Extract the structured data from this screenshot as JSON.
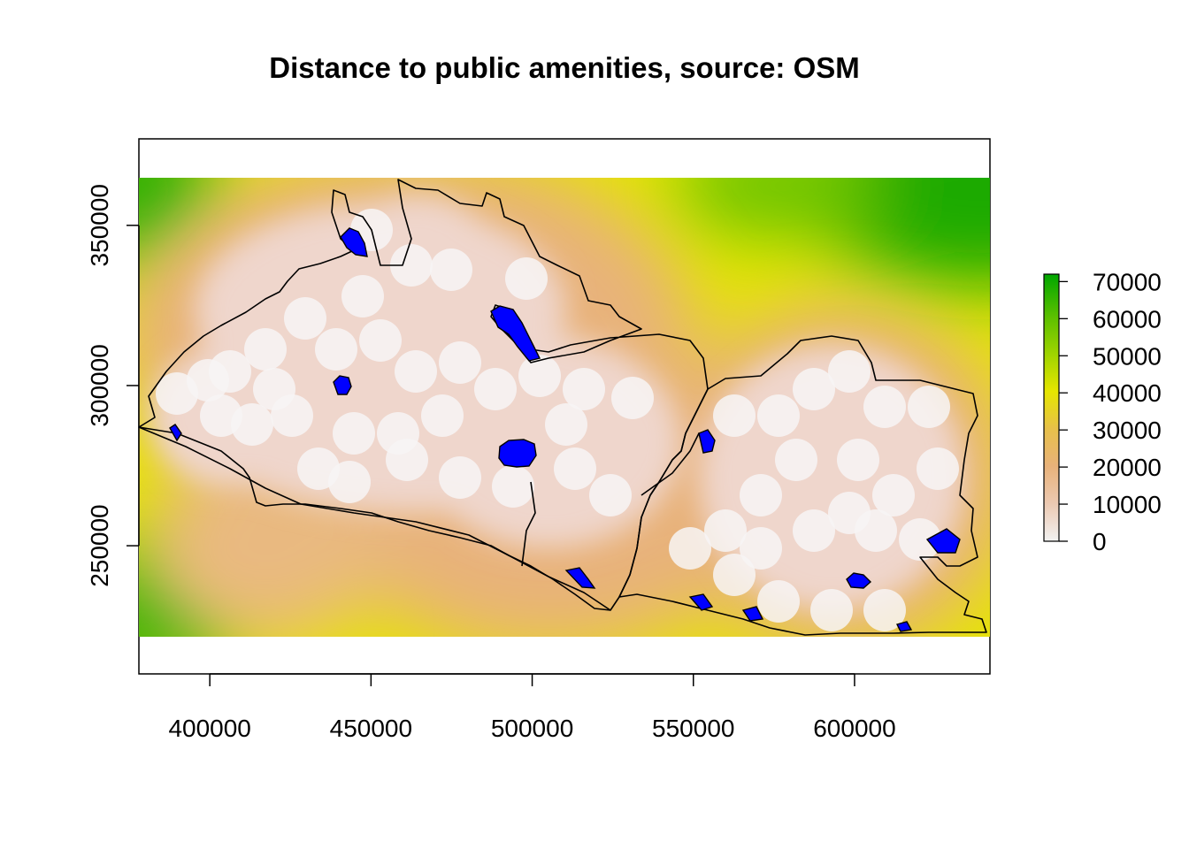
{
  "title": "Distance to public amenities, source: OSM",
  "chart_data": {
    "type": "heatmap",
    "map_kind": "raster distance surface with administrative boundaries",
    "x_ticks": [
      400000,
      450000,
      500000,
      550000,
      600000
    ],
    "y_ticks": [
      250000,
      300000,
      350000
    ],
    "xlim": [
      378000,
      642000
    ],
    "ylim": [
      210000,
      377000
    ],
    "raster_extent": {
      "x": [
        378000,
        642000
      ],
      "y": [
        227000,
        365000
      ]
    },
    "legend": {
      "position": "right",
      "ticks": [
        0,
        10000,
        20000,
        30000,
        40000,
        50000,
        60000,
        70000
      ],
      "range": [
        0,
        72000
      ],
      "colors": [
        "#f2f2f2",
        "#ecc9b2",
        "#e8b27a",
        "#e7c04a",
        "#e6e600",
        "#9fd400",
        "#5cc000",
        "#00a600"
      ]
    },
    "lake_color": "#0000ff",
    "boundary_color": "#000000"
  }
}
